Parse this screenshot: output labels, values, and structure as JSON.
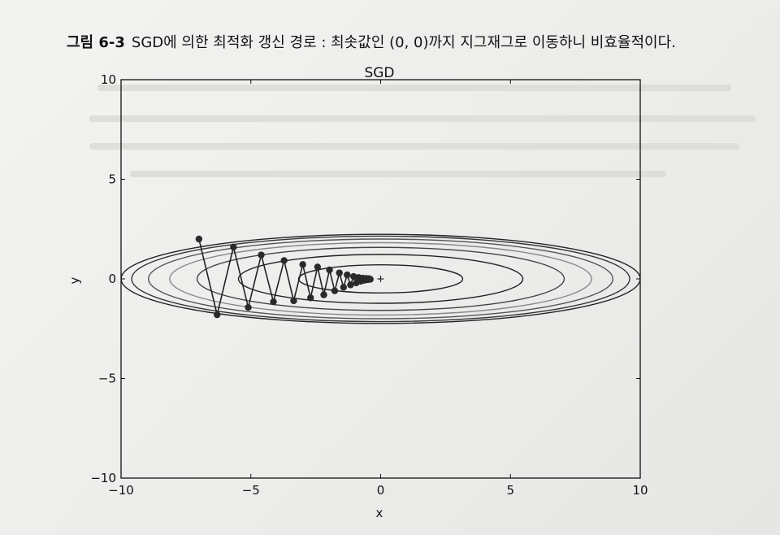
{
  "figure": {
    "label": "그림 6-3",
    "caption": "SGD에 의한 최적화 갱신 경로 : 최솟값인 (0, 0)까지 지그재그로 이동하니 비효율적이다."
  },
  "chart_data": {
    "type": "line",
    "title": "SGD",
    "xlabel": "x",
    "ylabel": "y",
    "xlim": [
      -10,
      10
    ],
    "ylim": [
      -10,
      10
    ],
    "xticks": [
      -10,
      -5,
      0,
      5,
      10
    ],
    "yticks": [
      -10,
      -5,
      0,
      5,
      10
    ],
    "xtick_labels": [
      "−10",
      "−5",
      "0",
      "5",
      "10"
    ],
    "ytick_labels": [
      "−10",
      "−5",
      "0",
      "5",
      "10"
    ],
    "grid": false,
    "function": "f(x, y) = x^2/20 + y^2",
    "contour_levels": [
      0.5,
      1.5,
      2.5,
      3.3,
      4.0,
      4.6,
      5.0
    ],
    "contour_colors": [
      "#222222",
      "#222222",
      "#444444",
      "#888888",
      "#555555",
      "#333333",
      "#222222"
    ],
    "minimum_marker": {
      "x": 0,
      "y": 0,
      "symbol": "+"
    },
    "series": [
      {
        "values": [
          {
            "x": -7.0,
            "y": 2.0
          },
          {
            "x": -6.3,
            "y": -1.8
          },
          {
            "x": -5.67,
            "y": 1.6
          },
          {
            "x": -5.1,
            "y": -1.43
          },
          {
            "x": -4.6,
            "y": 1.2
          },
          {
            "x": -4.13,
            "y": -1.15
          },
          {
            "x": -3.72,
            "y": 0.92
          },
          {
            "x": -3.35,
            "y": -1.1
          },
          {
            "x": -3.0,
            "y": 0.72
          },
          {
            "x": -2.7,
            "y": -0.95
          },
          {
            "x": -2.43,
            "y": 0.6
          },
          {
            "x": -2.19,
            "y": -0.8
          },
          {
            "x": -1.97,
            "y": 0.45
          },
          {
            "x": -1.77,
            "y": -0.6
          },
          {
            "x": -1.59,
            "y": 0.3
          },
          {
            "x": -1.43,
            "y": -0.42
          },
          {
            "x": -1.29,
            "y": 0.2
          },
          {
            "x": -1.16,
            "y": -0.3
          },
          {
            "x": -1.04,
            "y": 0.12
          },
          {
            "x": -0.94,
            "y": -0.2
          },
          {
            "x": -0.85,
            "y": 0.07
          },
          {
            "x": -0.76,
            "y": -0.12
          },
          {
            "x": -0.69,
            "y": 0.04
          },
          {
            "x": -0.62,
            "y": -0.07
          },
          {
            "x": -0.56,
            "y": 0.02
          },
          {
            "x": -0.5,
            "y": -0.04
          },
          {
            "x": -0.45,
            "y": 0.01
          },
          {
            "x": -0.4,
            "y": -0.02
          }
        ]
      }
    ]
  }
}
